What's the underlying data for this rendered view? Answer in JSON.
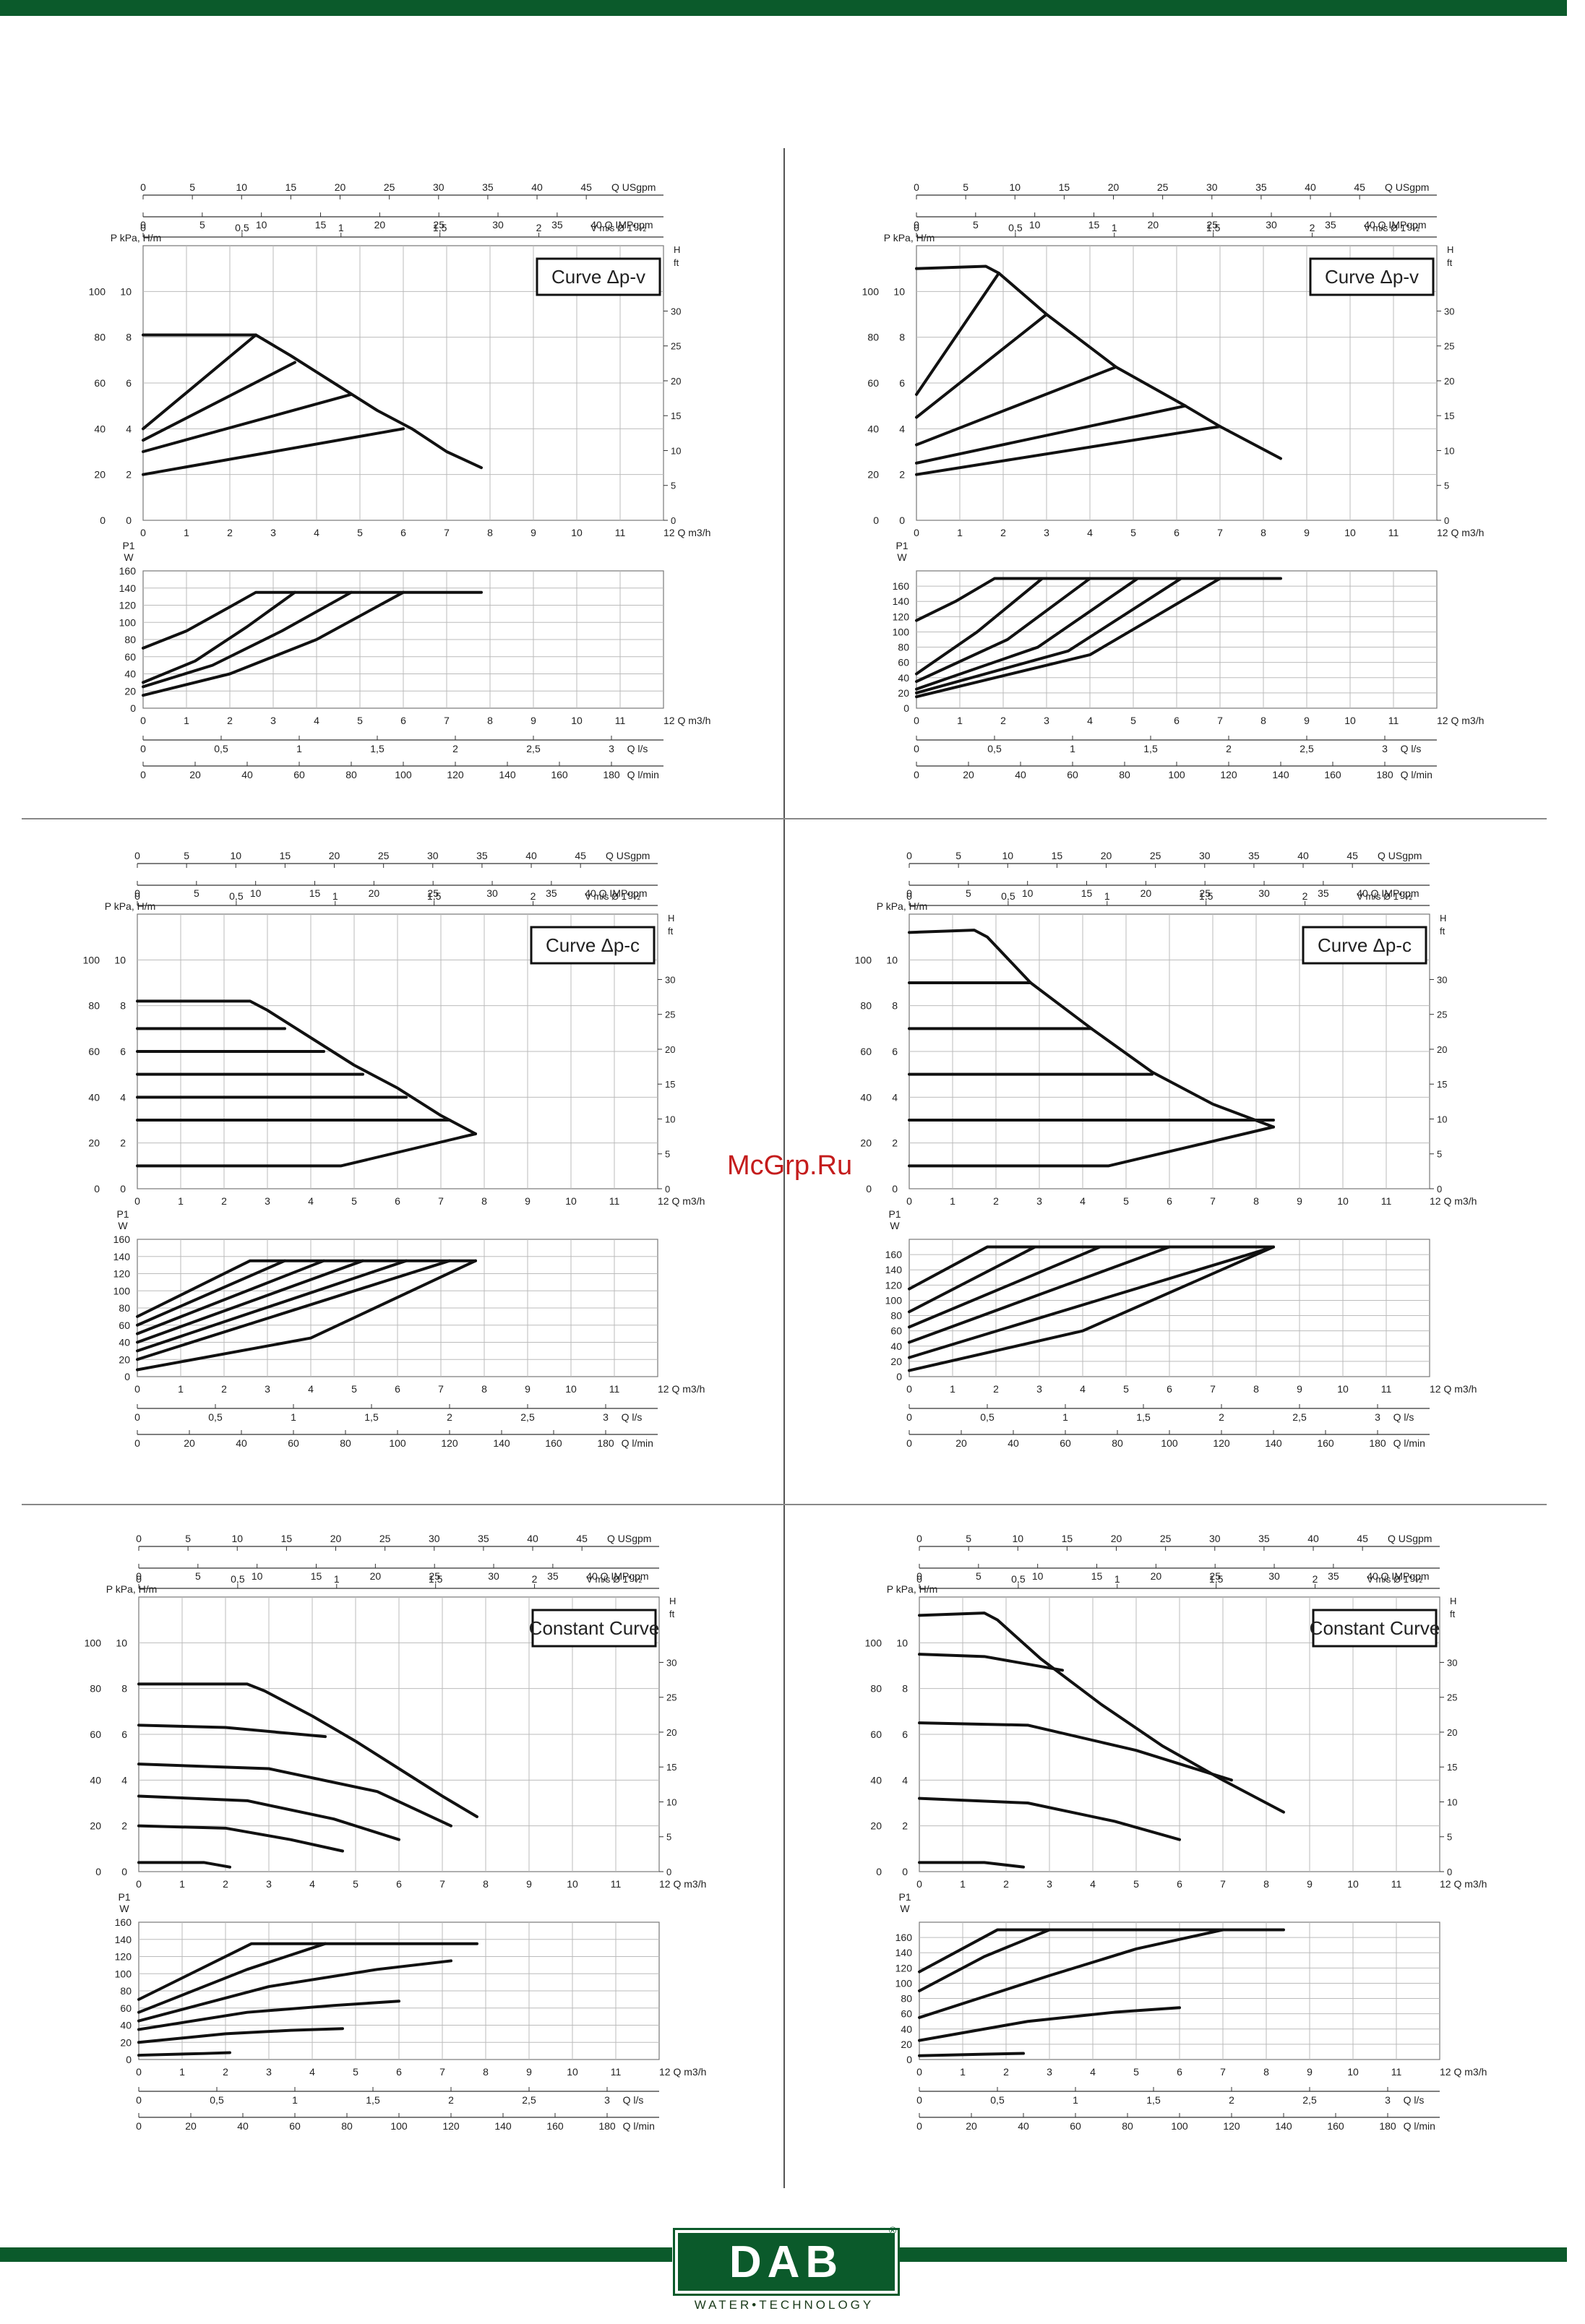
{
  "branding": {
    "logo": "DAB",
    "tagline": "WATER•TECHNOLOGY",
    "registered": "®"
  },
  "watermark": "McGrp.Ru",
  "axes": {
    "usgpm_ticks": [
      "0",
      "5",
      "10",
      "15",
      "20",
      "25",
      "30",
      "35",
      "40",
      "45"
    ],
    "usgpm_label": "Q USgpm",
    "impgpm_ticks": [
      "0",
      "5",
      "10",
      "15",
      "20",
      "25",
      "30",
      "35"
    ],
    "impgpm_label": "40 Q IMPgpm",
    "vel_ticks": [
      "0",
      "0,5",
      "1",
      "1,5",
      "2"
    ],
    "vel_label": "V m/s Ø 1\" ½",
    "pressure_label": "P kPa, H/m",
    "kpa_ticks": [
      "0",
      "20",
      "40",
      "60",
      "80",
      "100"
    ],
    "m_ticks": [
      "0",
      "2",
      "4",
      "6",
      "8",
      "10"
    ],
    "h_label": "H",
    "ft_label": "ft",
    "ft_ticks": [
      "0",
      "5",
      "10",
      "15",
      "20",
      "25",
      "30"
    ],
    "q_m3h_ticks": [
      "0",
      "1",
      "2",
      "3",
      "4",
      "5",
      "6",
      "7",
      "8",
      "9",
      "10",
      "11"
    ],
    "q_m3h_label": "12 Q m3/h",
    "p1_label": "P1",
    "w_label": "W",
    "power_ticks": [
      "0",
      "20",
      "40",
      "60",
      "80",
      "100",
      "120",
      "140",
      "160"
    ],
    "q_ls_ticks": [
      "0",
      "0,5",
      "1",
      "1,5",
      "2",
      "2,5",
      "3"
    ],
    "q_ls_label": "Q l/s",
    "q_lmin_ticks": [
      "0",
      "20",
      "40",
      "60",
      "80",
      "100",
      "120",
      "140",
      "160",
      "180"
    ],
    "q_lmin_label": "Q l/min"
  },
  "chart_data": [
    {
      "type": "line",
      "title": "Curve Δp-v",
      "xlabel": "Q m3/h",
      "ylabel": "P kPa, H/m",
      "xlim": [
        0,
        12
      ],
      "ylim": [
        0,
        120
      ],
      "series": [
        {
          "x": [
            0,
            2.6,
            3.4,
            4.4,
            5.4,
            6.2,
            7.0,
            7.8
          ],
          "y": [
            81,
            81,
            72,
            60,
            48,
            40,
            30,
            23
          ]
        },
        {
          "x": [
            0,
            2.6
          ],
          "y": [
            40,
            81
          ]
        },
        {
          "x": [
            0,
            3.5
          ],
          "y": [
            35,
            69
          ]
        },
        {
          "x": [
            0,
            4.8
          ],
          "y": [
            30,
            55
          ]
        },
        {
          "x": [
            0,
            6.0
          ],
          "y": [
            20,
            40
          ]
        }
      ],
      "power": {
        "ylim": [
          0,
          160
        ],
        "series": [
          {
            "x": [
              0,
              1.0,
              2.0,
              2.6,
              7.8
            ],
            "y": [
              70,
              90,
              118,
              135,
              135
            ]
          },
          {
            "x": [
              0,
              1.2,
              2.4,
              3.5
            ],
            "y": [
              30,
              55,
              95,
              135
            ]
          },
          {
            "x": [
              0,
              1.6,
              3.2,
              4.8
            ],
            "y": [
              25,
              50,
              90,
              135
            ]
          },
          {
            "x": [
              0,
              2.0,
              4.0,
              6.0
            ],
            "y": [
              15,
              40,
              80,
              135
            ]
          }
        ]
      }
    },
    {
      "type": "line",
      "title": "Curve Δp-v",
      "xlabel": "Q m3/h",
      "ylabel": "P kPa, H/m",
      "xlim": [
        0,
        12
      ],
      "ylim": [
        0,
        120
      ],
      "series": [
        {
          "x": [
            0,
            1.6,
            1.9,
            3.0,
            4.6,
            6.2,
            7.0,
            8.4
          ],
          "y": [
            110,
            111,
            108,
            90,
            67,
            50,
            41,
            27
          ]
        },
        {
          "x": [
            0,
            1.9
          ],
          "y": [
            55,
            108
          ]
        },
        {
          "x": [
            0,
            3.0
          ],
          "y": [
            45,
            90
          ]
        },
        {
          "x": [
            0,
            4.6
          ],
          "y": [
            33,
            67
          ]
        },
        {
          "x": [
            0,
            6.2
          ],
          "y": [
            25,
            50
          ]
        },
        {
          "x": [
            0,
            7.0
          ],
          "y": [
            20,
            41
          ]
        }
      ],
      "power": {
        "ylim": [
          0,
          180
        ],
        "series": [
          {
            "x": [
              0,
              0.9,
              1.8,
              8.4
            ],
            "y": [
              115,
              140,
              170,
              170
            ]
          },
          {
            "x": [
              0,
              1.4,
              2.9
            ],
            "y": [
              45,
              100,
              170
            ]
          },
          {
            "x": [
              0,
              2.1,
              4.0
            ],
            "y": [
              35,
              90,
              170
            ]
          },
          {
            "x": [
              0,
              2.8,
              5.1
            ],
            "y": [
              25,
              80,
              170
            ]
          },
          {
            "x": [
              0,
              3.5,
              6.1
            ],
            "y": [
              20,
              75,
              170
            ]
          },
          {
            "x": [
              0,
              4.0,
              7.0
            ],
            "y": [
              15,
              70,
              170
            ]
          }
        ]
      }
    },
    {
      "type": "line",
      "title": "Curve Δp-c",
      "xlabel": "Q m3/h",
      "ylabel": "P kPa, H/m",
      "xlim": [
        0,
        12
      ],
      "ylim": [
        0,
        120
      ],
      "series": [
        {
          "x": [
            0,
            2.6,
            3.0,
            4.0,
            5.0,
            6.0,
            7.0,
            7.8
          ],
          "y": [
            82,
            82,
            78,
            66,
            54,
            44,
            32,
            24
          ]
        },
        {
          "x": [
            0,
            3.4
          ],
          "y": [
            70,
            70
          ]
        },
        {
          "x": [
            0,
            4.3
          ],
          "y": [
            60,
            60
          ]
        },
        {
          "x": [
            0,
            5.2
          ],
          "y": [
            50,
            50
          ]
        },
        {
          "x": [
            0,
            6.2
          ],
          "y": [
            40,
            40
          ]
        },
        {
          "x": [
            0,
            7.2
          ],
          "y": [
            30,
            30
          ]
        },
        {
          "x": [
            0,
            4.7,
            7.8
          ],
          "y": [
            10,
            10,
            24
          ]
        }
      ],
      "power": {
        "ylim": [
          0,
          160
        ],
        "series": [
          {
            "x": [
              0,
              2.6,
              7.8
            ],
            "y": [
              70,
              135,
              135
            ]
          },
          {
            "x": [
              0,
              3.4
            ],
            "y": [
              60,
              135
            ]
          },
          {
            "x": [
              0,
              4.3
            ],
            "y": [
              50,
              135
            ]
          },
          {
            "x": [
              0,
              5.2
            ],
            "y": [
              40,
              135
            ]
          },
          {
            "x": [
              0,
              6.2
            ],
            "y": [
              30,
              135
            ]
          },
          {
            "x": [
              0,
              7.2
            ],
            "y": [
              20,
              135
            ]
          },
          {
            "x": [
              0,
              4.0,
              7.8
            ],
            "y": [
              8,
              45,
              135
            ]
          }
        ]
      }
    },
    {
      "type": "line",
      "title": "Curve Δp-c",
      "xlabel": "Q m3/h",
      "ylabel": "P kPa, H/m",
      "xlim": [
        0,
        12
      ],
      "ylim": [
        0,
        120
      ],
      "series": [
        {
          "x": [
            0,
            1.5,
            1.8,
            2.8,
            4.2,
            5.6,
            7.0,
            8.4
          ],
          "y": [
            112,
            113,
            110,
            90,
            70,
            51,
            37,
            27
          ]
        },
        {
          "x": [
            0,
            2.8
          ],
          "y": [
            90,
            90
          ]
        },
        {
          "x": [
            0,
            4.2
          ],
          "y": [
            70,
            70
          ]
        },
        {
          "x": [
            0,
            5.6
          ],
          "y": [
            50,
            50
          ]
        },
        {
          "x": [
            0,
            8.4
          ],
          "y": [
            30,
            30
          ]
        },
        {
          "x": [
            0,
            4.6,
            8.4
          ],
          "y": [
            10,
            10,
            27
          ]
        }
      ],
      "power": {
        "ylim": [
          0,
          180
        ],
        "series": [
          {
            "x": [
              0,
              1.8,
              8.4
            ],
            "y": [
              115,
              170,
              170
            ]
          },
          {
            "x": [
              0,
              2.9
            ],
            "y": [
              85,
              170
            ]
          },
          {
            "x": [
              0,
              4.4
            ],
            "y": [
              65,
              170
            ]
          },
          {
            "x": [
              0,
              6.0
            ],
            "y": [
              45,
              170
            ]
          },
          {
            "x": [
              0,
              8.4
            ],
            "y": [
              25,
              170
            ]
          },
          {
            "x": [
              0,
              4.0,
              8.4
            ],
            "y": [
              8,
              60,
              170
            ]
          }
        ]
      }
    },
    {
      "type": "line",
      "title": "Constant Curve",
      "xlabel": "Q m3/h",
      "ylabel": "P kPa, H/m",
      "xlim": [
        0,
        12
      ],
      "ylim": [
        0,
        120
      ],
      "series": [
        {
          "x": [
            0,
            2.5,
            2.9,
            4.0,
            5.0,
            6.0,
            7.0,
            7.8
          ],
          "y": [
            82,
            82,
            79,
            68,
            57,
            45,
            33,
            24
          ]
        },
        {
          "x": [
            0,
            2.0,
            4.3
          ],
          "y": [
            64,
            63,
            59
          ]
        },
        {
          "x": [
            0,
            3.0,
            5.5,
            7.2
          ],
          "y": [
            47,
            45,
            35,
            20
          ]
        },
        {
          "x": [
            0,
            2.5,
            4.5,
            6.0
          ],
          "y": [
            33,
            31,
            23,
            14
          ]
        },
        {
          "x": [
            0,
            2.0,
            3.5,
            4.7
          ],
          "y": [
            20,
            19,
            14,
            9
          ]
        },
        {
          "x": [
            0,
            1.5,
            2.1
          ],
          "y": [
            4,
            4,
            2
          ]
        }
      ],
      "power": {
        "ylim": [
          0,
          160
        ],
        "series": [
          {
            "x": [
              0,
              2.6,
              7.8
            ],
            "y": [
              70,
              135,
              135
            ]
          },
          {
            "x": [
              0,
              2.5,
              4.3
            ],
            "y": [
              55,
              105,
              135
            ]
          },
          {
            "x": [
              0,
              3.0,
              5.5,
              7.2
            ],
            "y": [
              45,
              85,
              105,
              115
            ]
          },
          {
            "x": [
              0,
              2.5,
              4.5,
              6.0
            ],
            "y": [
              35,
              55,
              63,
              68
            ]
          },
          {
            "x": [
              0,
              2.0,
              3.5,
              4.7
            ],
            "y": [
              20,
              30,
              34,
              36
            ]
          },
          {
            "x": [
              0,
              1.5,
              2.1
            ],
            "y": [
              5,
              7,
              8
            ]
          }
        ]
      }
    },
    {
      "type": "line",
      "title": "Constant Curve",
      "xlabel": "Q m3/h",
      "ylabel": "P kPa, H/m",
      "xlim": [
        0,
        12
      ],
      "ylim": [
        0,
        120
      ],
      "series": [
        {
          "x": [
            0,
            1.5,
            1.8,
            2.8,
            4.2,
            5.6,
            7.0,
            8.4
          ],
          "y": [
            112,
            113,
            110,
            93,
            73,
            55,
            40,
            26
          ]
        },
        {
          "x": [
            0,
            1.5,
            3.3
          ],
          "y": [
            95,
            94,
            88
          ]
        },
        {
          "x": [
            0,
            2.5,
            5.0,
            7.2
          ],
          "y": [
            65,
            64,
            53,
            40
          ]
        },
        {
          "x": [
            0,
            2.5,
            4.5,
            6.0
          ],
          "y": [
            32,
            30,
            22,
            14
          ]
        },
        {
          "x": [
            0,
            1.5,
            2.4
          ],
          "y": [
            4,
            4,
            2
          ]
        }
      ],
      "power": {
        "ylim": [
          0,
          180
        ],
        "series": [
          {
            "x": [
              0,
              1.8,
              8.4
            ],
            "y": [
              115,
              170,
              170
            ]
          },
          {
            "x": [
              0,
              1.5,
              3.0
            ],
            "y": [
              90,
              135,
              170
            ]
          },
          {
            "x": [
              0,
              3.0,
              5.0,
              7.0
            ],
            "y": [
              55,
              110,
              145,
              170
            ]
          },
          {
            "x": [
              0,
              2.5,
              4.5,
              6.0
            ],
            "y": [
              25,
              50,
              62,
              68
            ]
          },
          {
            "x": [
              0,
              1.5,
              2.4
            ],
            "y": [
              5,
              7,
              8
            ]
          }
        ]
      }
    }
  ]
}
